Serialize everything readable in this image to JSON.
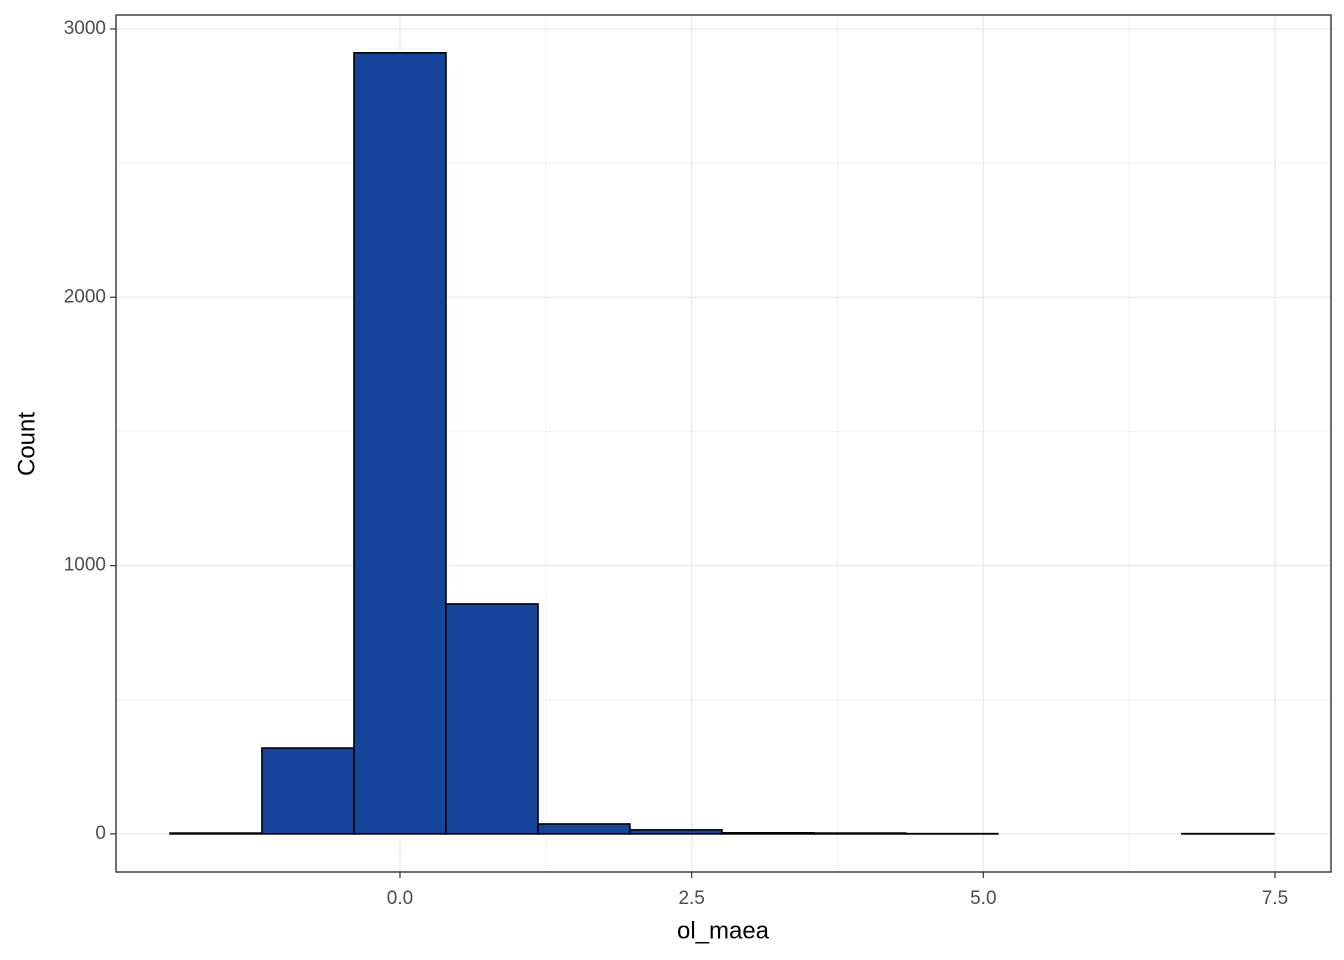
{
  "chart_data": {
    "type": "histogram",
    "x_label": "ol_maea",
    "y_label": "Count",
    "bins": [
      -1.971,
      -1.183,
      -0.394,
      0.394,
      1.183,
      1.971,
      2.76,
      3.548,
      4.337,
      5.125,
      5.914,
      6.702,
      7.491
    ],
    "values": [
      3,
      320,
      2911,
      857,
      37,
      15,
      4,
      3,
      1,
      0,
      0,
      1
    ],
    "color": "#17449b",
    "edge_color": "#000000",
    "xlim": [
      -2.434,
      7.98
    ],
    "ylim": [
      -142,
      3052
    ],
    "xticks": [
      {
        "value": 0,
        "label": "0.0"
      },
      {
        "value": 2.5,
        "label": "2.5"
      },
      {
        "value": 5,
        "label": "5.0"
      },
      {
        "value": 7.5,
        "label": "7.5"
      }
    ],
    "yticks": [
      0,
      1000,
      2000,
      3000
    ],
    "grid": true
  }
}
